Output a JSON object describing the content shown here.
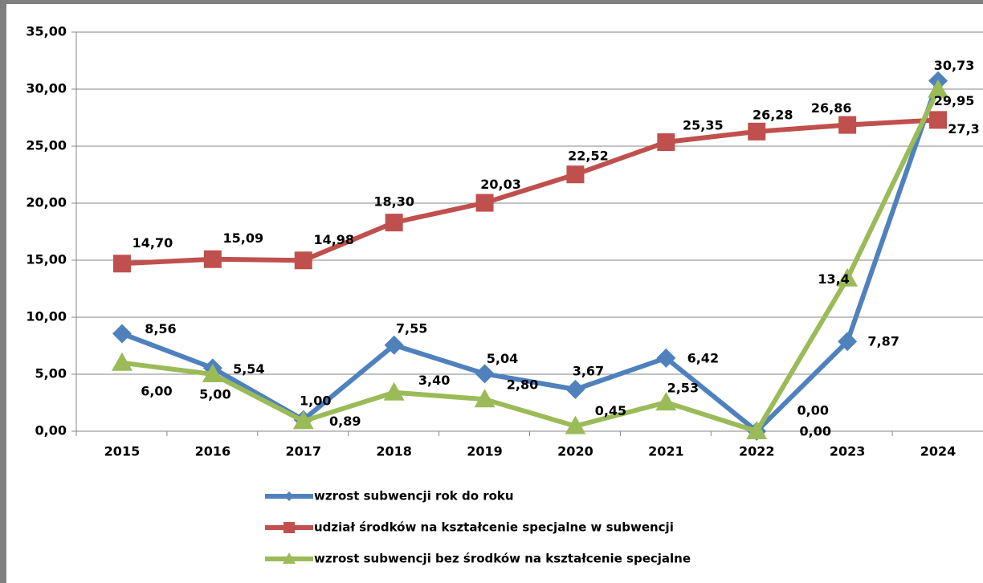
{
  "chart_data": {
    "type": "line",
    "categories": [
      "2015",
      "2016",
      "2017",
      "2018",
      "2019",
      "2020",
      "2021",
      "2022",
      "2023",
      "2024"
    ],
    "series": [
      {
        "name": "wzrost subwencji rok do roku",
        "color": "#4f81bd",
        "marker": "diamond",
        "values": [
          8.56,
          5.54,
          1.0,
          7.55,
          5.04,
          3.67,
          6.42,
          0.0,
          7.87,
          30.73
        ],
        "value_labels": [
          "8,56",
          "5,54",
          "1,00",
          "7,55",
          "5,04",
          "3,67",
          "6,42",
          "0,00",
          "7,87",
          "30,73"
        ]
      },
      {
        "name": "udział środków na kształcenie specjalne w subwencji",
        "color": "#c0504d",
        "marker": "square",
        "values": [
          14.7,
          15.09,
          14.98,
          18.3,
          20.03,
          22.52,
          25.35,
          26.28,
          26.86,
          27.3
        ],
        "value_labels": [
          "14,70",
          "15,09",
          "14,98",
          "18,30",
          "20,03",
          "22,52",
          "25,35",
          "26,28",
          "26,86",
          "27,3"
        ]
      },
      {
        "name": "wzrost subwencji bez środków na kształcenie specjalne",
        "color": "#9bbb59",
        "marker": "triangle",
        "values": [
          6.0,
          5.0,
          0.89,
          3.4,
          2.8,
          0.45,
          2.53,
          0.0,
          13.4,
          29.95
        ],
        "value_labels": [
          "6,00",
          "5,00",
          "0,89",
          "3,40",
          "2,80",
          "0,45",
          "2,53",
          "0,00",
          "13,4",
          "29,95"
        ]
      }
    ],
    "ylim": [
      0,
      35
    ],
    "yticks": [
      {
        "value": 0,
        "label": "0,00"
      },
      {
        "value": 5,
        "label": "5,00"
      },
      {
        "value": 10,
        "label": "10,00"
      },
      {
        "value": 15,
        "label": "15,00"
      },
      {
        "value": 20,
        "label": "20,00"
      },
      {
        "value": 25,
        "label": "25,00"
      },
      {
        "value": 30,
        "label": "30,00"
      },
      {
        "value": 35,
        "label": "35,00"
      }
    ],
    "grid": true,
    "legend": "bottom"
  }
}
